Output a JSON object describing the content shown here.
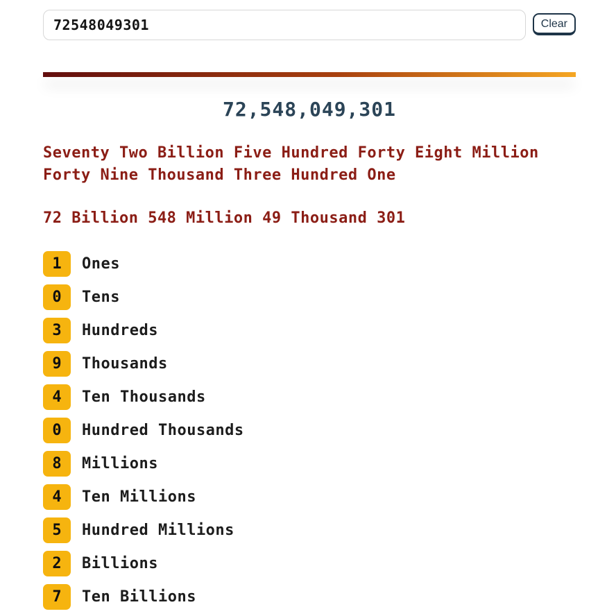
{
  "input_section": {
    "number_input": {
      "value": "72548049301",
      "placeholder": ""
    },
    "clear_button_label": "Clear"
  },
  "result": {
    "formatted_number": "72,548,049,301",
    "words": "Seventy Two Billion Five Hundred Forty Eight Million Forty Nine Thousand Three Hundred One",
    "short_scale": "72 Billion 548 Million 49 Thousand 301",
    "place_values": [
      {
        "digit": "1",
        "label": "Ones"
      },
      {
        "digit": "0",
        "label": "Tens"
      },
      {
        "digit": "3",
        "label": "Hundreds"
      },
      {
        "digit": "9",
        "label": "Thousands"
      },
      {
        "digit": "4",
        "label": "Ten Thousands"
      },
      {
        "digit": "0",
        "label": "Hundred Thousands"
      },
      {
        "digit": "8",
        "label": "Millions"
      },
      {
        "digit": "4",
        "label": "Ten Millions"
      },
      {
        "digit": "5",
        "label": "Hundred Millions"
      },
      {
        "digit": "2",
        "label": "Billions"
      },
      {
        "digit": "7",
        "label": "Ten Billions"
      }
    ]
  },
  "colors": {
    "accent_maroon": "#8b1d15",
    "accent_navy": "#2b4457",
    "badge_amber": "#f6b40f",
    "divider_gradient_start": "#620e0e",
    "divider_gradient_end": "#f5a623",
    "button_navy": "#1d3447"
  }
}
